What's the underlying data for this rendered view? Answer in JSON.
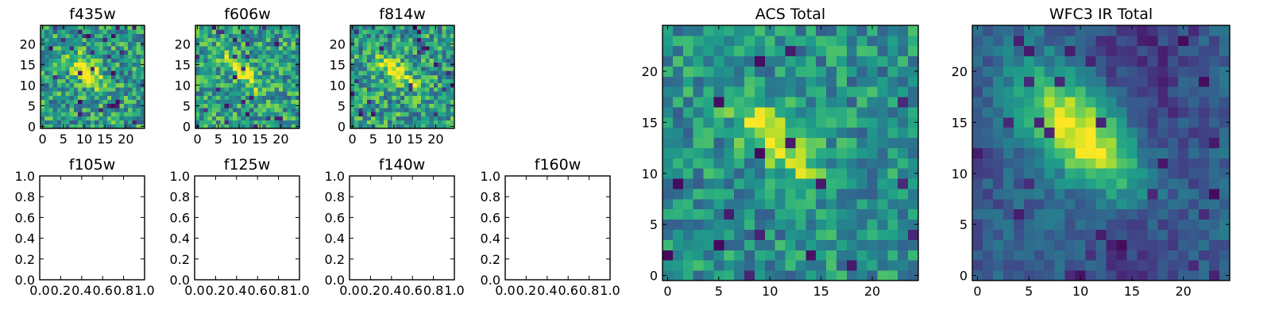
{
  "chart_data": [
    {
      "type": "heatmap",
      "title": "f435w",
      "colormap": "viridis",
      "grid_size": [
        25,
        25
      ],
      "xlim": [
        -0.5,
        24.5
      ],
      "ylim": [
        -0.5,
        24.5
      ],
      "x_ticks": [
        0,
        5,
        10,
        15,
        20
      ],
      "y_ticks": [
        0,
        5,
        10,
        15,
        20
      ],
      "x_tick_labels": [
        "0",
        "5",
        "10",
        "15",
        "20"
      ],
      "y_tick_labels": [
        "0",
        "5",
        "10",
        "15",
        "20"
      ],
      "feature": {
        "description_values": {
          "center_x": 11,
          "center_y": 12
        }
      }
    },
    {
      "type": "heatmap",
      "title": "f606w",
      "colormap": "viridis",
      "grid_size": [
        25,
        25
      ],
      "xlim": [
        -0.5,
        24.5
      ],
      "ylim": [
        -0.5,
        24.5
      ],
      "x_ticks": [
        0,
        5,
        10,
        15,
        20
      ],
      "y_ticks": [
        0,
        5,
        10,
        15,
        20
      ],
      "x_tick_labels": [
        "0",
        "5",
        "10",
        "15",
        "20"
      ],
      "y_tick_labels": [
        "0",
        "5",
        "10",
        "15",
        "20"
      ]
    },
    {
      "type": "heatmap",
      "title": "f814w",
      "colormap": "viridis",
      "grid_size": [
        25,
        25
      ],
      "xlim": [
        -0.5,
        24.5
      ],
      "ylim": [
        -0.5,
        24.5
      ],
      "x_ticks": [
        0,
        5,
        10,
        15,
        20
      ],
      "y_ticks": [
        0,
        5,
        10,
        15,
        20
      ],
      "x_tick_labels": [
        "0",
        "5",
        "10",
        "15",
        "20"
      ],
      "y_tick_labels": [
        "0",
        "5",
        "10",
        "15",
        "20"
      ]
    },
    {
      "type": "heatmap",
      "title": "f105w",
      "empty": true,
      "xlim": [
        0.0,
        1.0
      ],
      "ylim": [
        0.0,
        1.0
      ],
      "x_tick_labels": [
        "0.0",
        "0.2",
        "0.4",
        "0.6",
        "0.8",
        "1.0"
      ],
      "y_tick_labels": [
        "0.0",
        "0.2",
        "0.4",
        "0.6",
        "0.8",
        "1.0"
      ]
    },
    {
      "type": "heatmap",
      "title": "f125w",
      "empty": true,
      "xlim": [
        0.0,
        1.0
      ],
      "ylim": [
        0.0,
        1.0
      ],
      "x_tick_labels": [
        "0.0",
        "0.2",
        "0.4",
        "0.6",
        "0.8",
        "1.0"
      ],
      "y_tick_labels": [
        "0.0",
        "0.2",
        "0.4",
        "0.6",
        "0.8",
        "1.0"
      ]
    },
    {
      "type": "heatmap",
      "title": "f140w",
      "empty": true,
      "xlim": [
        0.0,
        1.0
      ],
      "ylim": [
        0.0,
        1.0
      ],
      "x_tick_labels": [
        "0.0",
        "0.2",
        "0.4",
        "0.6",
        "0.8",
        "1.0"
      ],
      "y_tick_labels": [
        "0.0",
        "0.2",
        "0.4",
        "0.6",
        "0.8",
        "1.0"
      ]
    },
    {
      "type": "heatmap",
      "title": "f160w",
      "empty": true,
      "xlim": [
        0.0,
        1.0
      ],
      "ylim": [
        0.0,
        1.0
      ],
      "x_tick_labels": [
        "0.0",
        "0.2",
        "0.4",
        "0.6",
        "0.8",
        "1.0"
      ],
      "y_tick_labels": [
        "0.0",
        "0.2",
        "0.4",
        "0.6",
        "0.8",
        "1.0"
      ]
    },
    {
      "type": "heatmap",
      "title": "ACS Total",
      "colormap": "viridis",
      "grid_size": [
        25,
        25
      ],
      "xlim": [
        -0.5,
        24.5
      ],
      "ylim": [
        -0.5,
        24.5
      ],
      "x_ticks": [
        0,
        5,
        10,
        15,
        20
      ],
      "y_ticks": [
        0,
        5,
        10,
        15,
        20
      ],
      "x_tick_labels": [
        "0",
        "5",
        "10",
        "15",
        "20"
      ],
      "y_tick_labels": [
        "0",
        "5",
        "10",
        "15",
        "20"
      ]
    },
    {
      "type": "heatmap",
      "title": "WFC3 IR Total",
      "colormap": "viridis",
      "grid_size": [
        25,
        25
      ],
      "xlim": [
        -0.5,
        24.5
      ],
      "ylim": [
        -0.5,
        24.5
      ],
      "x_ticks": [
        0,
        5,
        10,
        15,
        20
      ],
      "y_ticks": [
        0,
        5,
        10,
        15,
        20
      ],
      "x_tick_labels": [
        "0",
        "5",
        "10",
        "15",
        "20"
      ],
      "y_tick_labels": [
        "0",
        "5",
        "10",
        "15",
        "20"
      ]
    }
  ]
}
